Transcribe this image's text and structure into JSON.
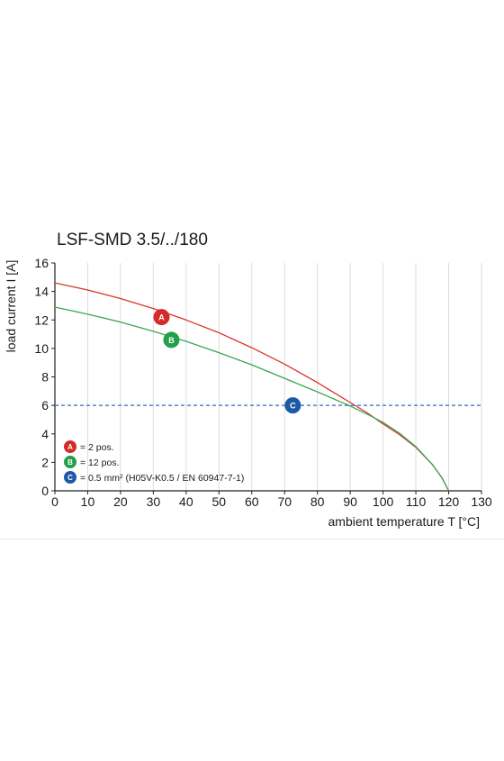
{
  "chart_data": {
    "type": "line",
    "title": "LSF-SMD 3.5/../180",
    "xlabel": "ambient temperature T [°C]",
    "ylabel": "load current I [A]",
    "xlim": [
      0,
      130
    ],
    "ylim": [
      0,
      16
    ],
    "xticks": [
      0,
      10,
      20,
      30,
      40,
      50,
      60,
      70,
      80,
      90,
      100,
      110,
      120,
      130
    ],
    "yticks": [
      0,
      2,
      4,
      6,
      8,
      10,
      12,
      14,
      16
    ],
    "grid": "vertical only",
    "series": [
      {
        "marker": "A",
        "color": "#d9342b",
        "x": [
          0,
          10,
          20,
          30,
          40,
          50,
          60,
          70,
          80,
          90,
          95,
          100,
          105,
          110,
          115,
          118,
          120
        ],
        "y": [
          14.6,
          14.1,
          13.5,
          12.8,
          12.0,
          11.1,
          10.05,
          8.9,
          7.6,
          6.2,
          5.5,
          4.7,
          3.95,
          3.05,
          1.85,
          0.9,
          0
        ]
      },
      {
        "marker": "B",
        "color": "#3aa655",
        "x": [
          0,
          10,
          20,
          30,
          40,
          50,
          60,
          70,
          80,
          90,
          95,
          100,
          105,
          110,
          115,
          118,
          120
        ],
        "y": [
          12.9,
          12.4,
          11.85,
          11.2,
          10.5,
          9.7,
          8.85,
          7.9,
          6.95,
          5.95,
          5.4,
          4.8,
          4.05,
          3.1,
          1.85,
          0.9,
          0
        ]
      },
      {
        "marker": "C",
        "color": "#2f6db3",
        "style": "dashed",
        "x": [
          0,
          130
        ],
        "y": [
          6,
          6
        ]
      }
    ],
    "markers": [
      {
        "id": "A",
        "x": 32.5,
        "y": 12.2,
        "color": "#d42a2a"
      },
      {
        "id": "B",
        "x": 35.5,
        "y": 10.6,
        "color": "#23a04a"
      },
      {
        "id": "C",
        "x": 72.5,
        "y": 6.0,
        "color": "#1d5aa6"
      }
    ],
    "legend": {
      "placement": "bottom-left",
      "entries": [
        {
          "id": "A",
          "text": "= 2 pos.",
          "color": "#d42a2a"
        },
        {
          "id": "B",
          "text": "= 12 pos.",
          "color": "#23a04a"
        },
        {
          "id": "C",
          "text": "= 0.5 mm² (H05V-K0.5 / EN 60947-7-1)",
          "color": "#1d5aa6"
        }
      ]
    }
  }
}
